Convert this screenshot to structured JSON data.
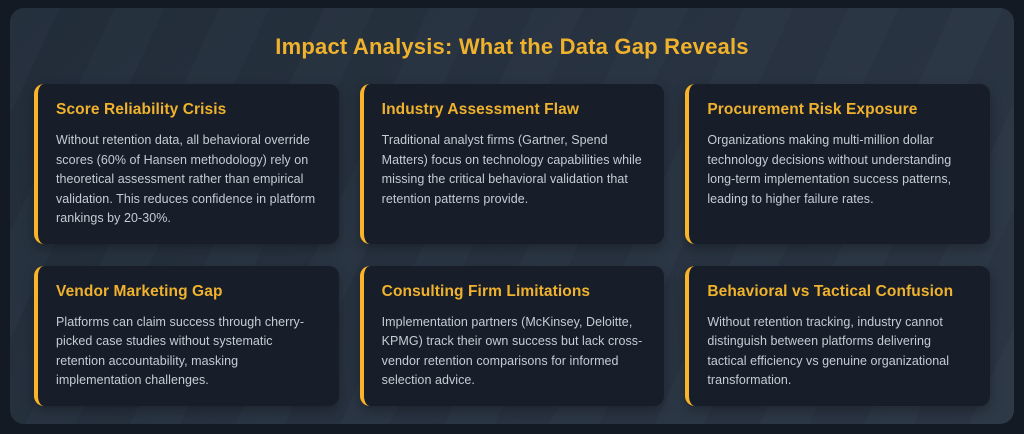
{
  "page": {
    "title": "Impact Analysis: What the Data Gap Reveals"
  },
  "colors": {
    "outer_bg": "#141a23",
    "panel_bg": "#273240",
    "card_bg": "#171e2a",
    "card_border": "#fbb42a",
    "accent": "#f0b22c",
    "body_text": "#c6ccd4"
  },
  "cards": [
    {
      "title": "Score Reliability Crisis",
      "body": "Without retention data, all behavioral override scores (60% of Hansen methodology) rely on theoretical assessment rather than empirical validation. This reduces confidence in platform rankings by 20-30%."
    },
    {
      "title": "Industry Assessment Flaw",
      "body": "Traditional analyst firms (Gartner, Spend Matters) focus on technology capabilities while missing the critical behavioral validation that retention patterns provide."
    },
    {
      "title": "Procurement Risk Exposure",
      "body": "Organizations making multi-million dollar technology decisions without understanding long-term implementation success patterns, leading to higher failure rates."
    },
    {
      "title": "Vendor Marketing Gap",
      "body": "Platforms can claim success through cherry-picked case studies without systematic retention accountability, masking implementation challenges."
    },
    {
      "title": "Consulting Firm Limitations",
      "body": "Implementation partners (McKinsey, Deloitte, KPMG) track their own success but lack cross-vendor retention comparisons for informed selection advice."
    },
    {
      "title": "Behavioral vs Tactical Confusion",
      "body": "Without retention tracking, industry cannot distinguish between platforms delivering tactical efficiency vs genuine organizational transformation."
    }
  ]
}
